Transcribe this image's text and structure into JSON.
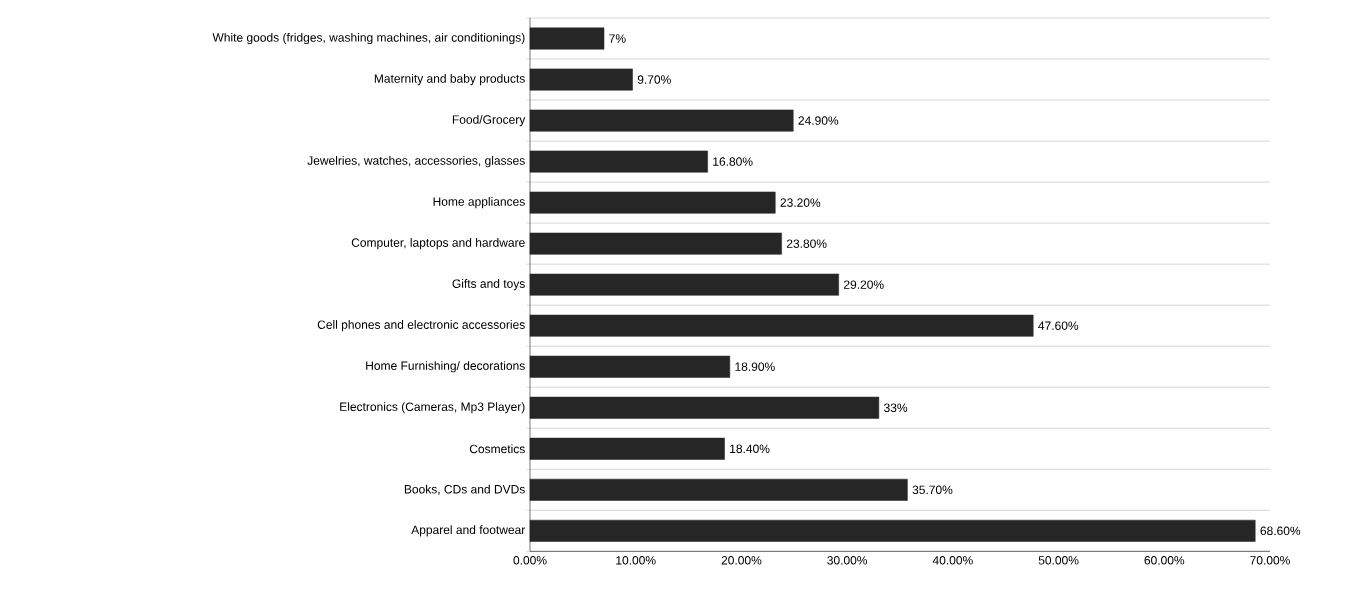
{
  "chart_data": {
    "type": "bar",
    "orientation": "horizontal",
    "categories": [
      "White goods (fridges, washing machines, air conditionings)",
      "Maternity and baby products",
      "Food/Grocery",
      "Jewelries, watches, accessories, glasses",
      "Home appliances",
      "Computer, laptops and hardware",
      "Gifts and toys",
      "Cell phones and electronic accessories",
      "Home Furnishing/ decorations",
      "Electronics (Cameras, Mp3 Player)",
      "Cosmetics",
      "Books, CDs and DVDs",
      "Apparel and footwear"
    ],
    "values": [
      7,
      9.7,
      24.9,
      16.8,
      23.2,
      23.8,
      29.2,
      47.6,
      18.9,
      33,
      18.4,
      35.7,
      68.6
    ],
    "value_labels": [
      "7%",
      "9.70%",
      "24.90%",
      "16.80%",
      "23.20%",
      "23.80%",
      "29.20%",
      "47.60%",
      "18.90%",
      "33%",
      "18.40%",
      "35.70%",
      "68.60%"
    ],
    "color": "#262626",
    "xlim": [
      0,
      70
    ],
    "xticks": [
      {
        "value": 0,
        "label": "0.00%"
      },
      {
        "value": 10,
        "label": "10.00%"
      },
      {
        "value": 20,
        "label": "20.00%"
      },
      {
        "value": 30,
        "label": "30.00%"
      },
      {
        "value": 40,
        "label": "40.00%"
      },
      {
        "value": 50,
        "label": "50.00%"
      },
      {
        "value": 60,
        "label": "60.00%"
      },
      {
        "value": 70,
        "label": "70.00%"
      }
    ],
    "grid": "y"
  }
}
